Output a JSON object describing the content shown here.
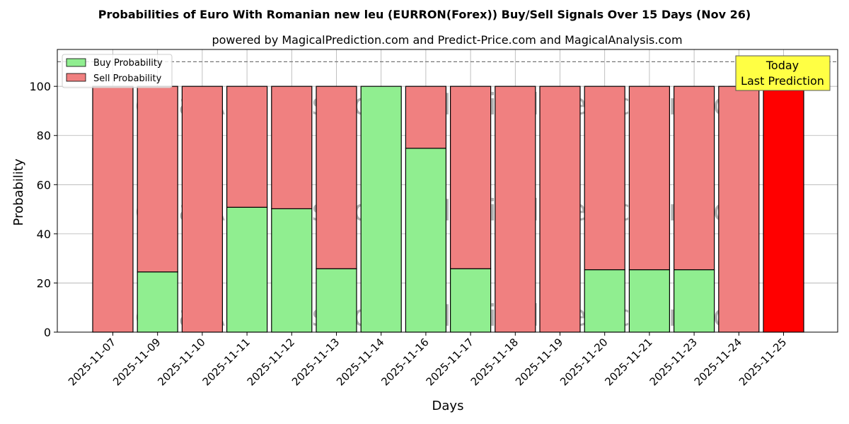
{
  "chart_data": {
    "type": "bar",
    "stacked": true,
    "title": "Probabilities of Euro With Romanian new leu (EURRON(Forex)) Buy/Sell Signals Over 15 Days (Nov 26)",
    "subtitle": "powered by MagicalPrediction.com and Predict-Price.com and MagicalAnalysis.com",
    "xlabel": "Days",
    "ylabel": "Probability",
    "ylim": [
      0,
      115
    ],
    "yticks": [
      0,
      20,
      40,
      60,
      80,
      100
    ],
    "grid": true,
    "legend_position": "top-left",
    "reference_line": 110,
    "categories": [
      "2025-11-07",
      "2025-11-09",
      "2025-11-10",
      "2025-11-11",
      "2025-11-12",
      "2025-11-13",
      "2025-11-14",
      "2025-11-16",
      "2025-11-17",
      "2025-11-18",
      "2025-11-19",
      "2025-11-20",
      "2025-11-21",
      "2025-11-23",
      "2025-11-24",
      "2025-11-25"
    ],
    "series": [
      {
        "name": "Buy Probability",
        "color": "#90ee90",
        "values": [
          0,
          24.5,
          0,
          50.8,
          50.2,
          25.8,
          100,
          74.8,
          25.8,
          0,
          0,
          25.4,
          25.4,
          25.4,
          0,
          0
        ]
      },
      {
        "name": "Sell Probability",
        "color": "#f08080",
        "values": [
          100,
          75.5,
          100,
          49.2,
          49.8,
          74.2,
          0,
          25.2,
          74.2,
          100,
          100,
          74.6,
          74.6,
          74.6,
          100,
          100
        ]
      }
    ],
    "highlight": {
      "index": 15,
      "color": "#ff0000"
    },
    "annotation": {
      "line1": "Today",
      "line2": "Last Prediction",
      "background": "#ffff44"
    },
    "watermarks": [
      "MagicalAnalysis.com",
      "MagicalPrediction.com"
    ]
  }
}
